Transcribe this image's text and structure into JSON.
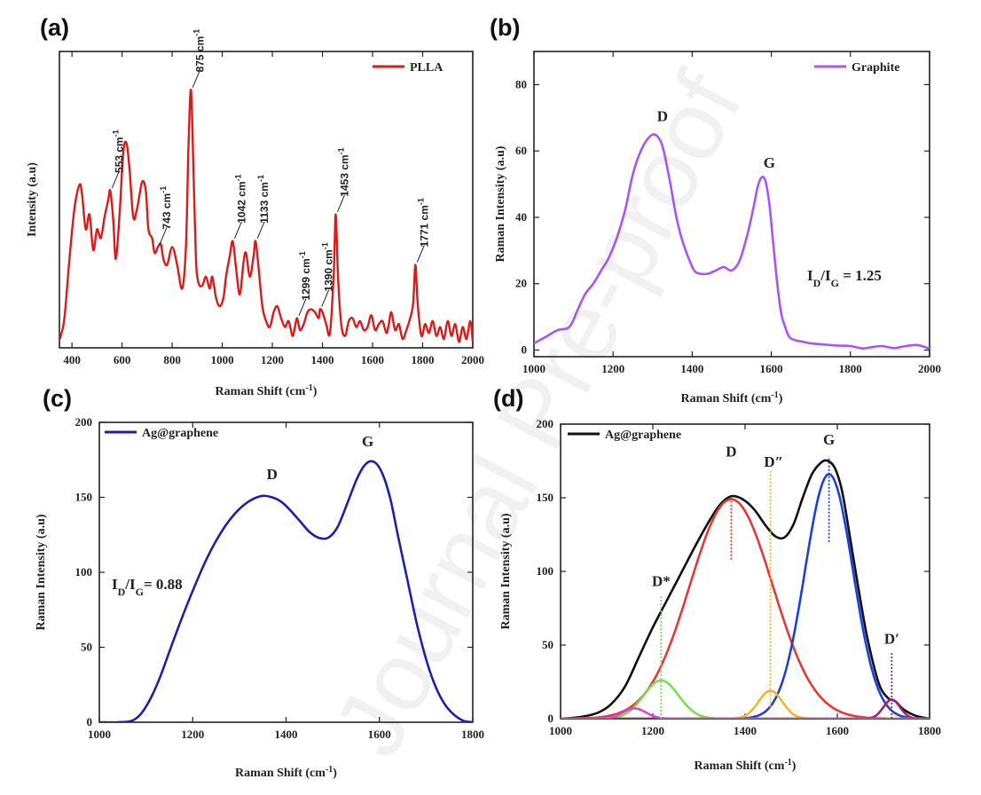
{
  "watermark": "Journal Pre-proof",
  "chart_data": [
    {
      "panel": "(a)",
      "type": "line",
      "xlabel": "Raman Shift (cm",
      "xlabel_sup": "-1",
      "xlabel_end": ")",
      "ylabel": "Intensity (a.u)",
      "xlim": [
        350,
        2000
      ],
      "xticks": [
        400,
        600,
        800,
        1000,
        1200,
        1400,
        1600,
        1800,
        2000
      ],
      "yticks_shown": false,
      "legend": "PLLA",
      "legend_position": "top-right",
      "series": [
        {
          "name": "PLLA",
          "color": "#dd1a1a",
          "x": [
            352,
            370,
            390,
            410,
            430,
            440,
            455,
            470,
            485,
            500,
            515,
            530,
            545,
            553,
            565,
            575,
            590,
            605,
            618,
            630,
            645,
            660,
            680,
            695,
            705,
            720,
            730,
            743,
            755,
            765,
            780,
            800,
            820,
            840,
            855,
            865,
            875,
            885,
            895,
            905,
            920,
            935,
            950,
            960,
            975,
            990,
            1005,
            1015,
            1030,
            1042,
            1055,
            1070,
            1085,
            1095,
            1110,
            1125,
            1133,
            1145,
            1160,
            1175,
            1190,
            1205,
            1220,
            1235,
            1250,
            1265,
            1280,
            1290,
            1299,
            1310,
            1325,
            1340,
            1355,
            1370,
            1385,
            1390,
            1400,
            1415,
            1430,
            1445,
            1453,
            1462,
            1475,
            1490,
            1505,
            1520,
            1535,
            1550,
            1565,
            1580,
            1595,
            1610,
            1625,
            1640,
            1655,
            1665,
            1675,
            1690,
            1705,
            1720,
            1735,
            1750,
            1762,
            1771,
            1780,
            1795,
            1810,
            1825,
            1840,
            1855,
            1870,
            1885,
            1900,
            1915,
            1930,
            1945,
            1960,
            1975,
            1990,
            2000
          ],
          "y": [
            3,
            10,
            30,
            47,
            55,
            52,
            40,
            45,
            33,
            40,
            37,
            44,
            50,
            53,
            43,
            30,
            45,
            66,
            69,
            60,
            44,
            47,
            56,
            53,
            40,
            37,
            32,
            34,
            35,
            30,
            28,
            34,
            28,
            20,
            34,
            67,
            87,
            60,
            30,
            22,
            21,
            24,
            20,
            24,
            17,
            14,
            17,
            24,
            31,
            36,
            27,
            18,
            29,
            32,
            24,
            31,
            36,
            27,
            14,
            9,
            7,
            12,
            14,
            10,
            7,
            9,
            4,
            7,
            10,
            6,
            8,
            12,
            13,
            12,
            10,
            13,
            12,
            8,
            5,
            25,
            45,
            24,
            8,
            4,
            9,
            10,
            7,
            9,
            6,
            7,
            11,
            6,
            8,
            9,
            5,
            8,
            12,
            6,
            8,
            3,
            6,
            10,
            15,
            28,
            15,
            4,
            8,
            5,
            9,
            4,
            7,
            3,
            9,
            4,
            8,
            2,
            7,
            3,
            9,
            2
          ],
          "color_note": "red"
        }
      ],
      "annotations": [
        {
          "label": "553 cm",
          "sup": "-1",
          "x": 553,
          "y": 53
        },
        {
          "label": "743 cm",
          "sup": "-1",
          "x": 743,
          "y": 34
        },
        {
          "label": "875 cm",
          "sup": "-1",
          "x": 875,
          "y": 87
        },
        {
          "label": "1042 cm",
          "sup": "-1",
          "x": 1042,
          "y": 36
        },
        {
          "label": "1133 cm",
          "sup": "-1",
          "x": 1133,
          "y": 36
        },
        {
          "label": "1299 cm",
          "sup": "-1",
          "x": 1299,
          "y": 10
        },
        {
          "label": "1390 cm",
          "sup": "-1",
          "x": 1390,
          "y": 13
        },
        {
          "label": "1453 cm",
          "sup": "-1",
          "x": 1453,
          "y": 45
        },
        {
          "label": "1771 cm",
          "sup": "-1",
          "x": 1771,
          "y": 28
        }
      ],
      "ylim": [
        0,
        100
      ]
    },
    {
      "panel": "(b)",
      "type": "line",
      "xlabel": "Raman Shift (cm",
      "xlabel_sup": "-1",
      "xlabel_end": ")",
      "ylabel": "Raman Intensity (a.u)",
      "xlim": [
        1000,
        2000
      ],
      "ylim": [
        -2,
        90
      ],
      "xticks": [
        1000,
        1200,
        1400,
        1600,
        1800,
        2000
      ],
      "yticks": [
        0,
        20,
        40,
        60,
        80
      ],
      "legend": "Graphite",
      "legend_position": "top-right",
      "series": [
        {
          "name": "Graphite",
          "color": "#a855f7",
          "x": [
            1000,
            1030,
            1060,
            1090,
            1110,
            1130,
            1150,
            1170,
            1190,
            1210,
            1230,
            1250,
            1270,
            1290,
            1305,
            1320,
            1330,
            1345,
            1360,
            1375,
            1390,
            1405,
            1420,
            1440,
            1460,
            1480,
            1500,
            1520,
            1540,
            1555,
            1565,
            1575,
            1585,
            1595,
            1605,
            1615,
            1625,
            1635,
            1645,
            1660,
            1680,
            1700,
            1720,
            1740,
            1760,
            1780,
            1800,
            1830,
            1850,
            1880,
            1910,
            1940,
            1970,
            2000
          ],
          "y": [
            2,
            4,
            6,
            7,
            12,
            17,
            20,
            24,
            28,
            34,
            42,
            53,
            60,
            64,
            65,
            63,
            59,
            50,
            40,
            33,
            28,
            24,
            23,
            23,
            24,
            25,
            24,
            27,
            35,
            43,
            49,
            52,
            51,
            44,
            32,
            20,
            11,
            7,
            4,
            3,
            2.5,
            2,
            1.8,
            1.6,
            1.4,
            1.3,
            1.2,
            0.5,
            0.8,
            1.2,
            0.6,
            1.2,
            1.5,
            0.4
          ],
          "color_note": "purple"
        }
      ],
      "peak_labels": [
        {
          "text": "D",
          "x": 1325,
          "y": 69
        },
        {
          "text": "G",
          "x": 1595,
          "y": 55
        }
      ],
      "ratio": {
        "text_I": "I",
        "sub_D": "D",
        "slash": "/I",
        "sub_G": "G",
        "value": " = 1.25"
      }
    },
    {
      "panel": "(c)",
      "type": "line",
      "xlabel": "Raman Shift (cm",
      "xlabel_sup": "-1",
      "xlabel_end": ")",
      "ylabel": "Raman Intensity (a.u)",
      "xlim": [
        1000,
        1800
      ],
      "ylim": [
        0,
        200
      ],
      "xticks": [
        1000,
        1200,
        1400,
        1600,
        1800
      ],
      "yticks": [
        0,
        50,
        100,
        150,
        200
      ],
      "legend": "Ag@graphene",
      "legend_position": "top-left",
      "series": [
        {
          "name": "Ag@graphene",
          "color": "#1c22a8",
          "x": [
            1000,
            1040,
            1070,
            1090,
            1110,
            1130,
            1150,
            1170,
            1190,
            1210,
            1230,
            1250,
            1270,
            1290,
            1310,
            1330,
            1350,
            1370,
            1390,
            1410,
            1430,
            1450,
            1470,
            1490,
            1510,
            1530,
            1550,
            1565,
            1580,
            1595,
            1610,
            1625,
            1640,
            1660,
            1680,
            1700,
            1720,
            1740,
            1760,
            1780,
            1800
          ],
          "y": [
            0,
            0,
            1,
            6,
            16,
            30,
            47,
            64,
            80,
            95,
            109,
            121,
            131,
            139,
            145,
            149,
            151,
            150,
            147,
            141,
            134,
            127,
            123,
            123,
            130,
            145,
            161,
            170,
            174,
            172,
            163,
            147,
            124,
            95,
            66,
            42,
            24,
            12,
            5,
            1,
            0
          ],
          "color_note": "navy"
        }
      ],
      "peak_labels": [
        {
          "text": "D",
          "x": 1370,
          "y": 162
        },
        {
          "text": "G",
          "x": 1575,
          "y": 184
        }
      ],
      "ratio": {
        "text_I": "I",
        "sub_D": "D",
        "slash": "/I",
        "sub_G": "G",
        "value": "= 0.88"
      }
    },
    {
      "panel": "(d)",
      "type": "line",
      "xlabel": "Raman Shift (cm",
      "xlabel_sup": "-1",
      "xlabel_end": ")",
      "ylabel": "Raman Intensity (a.u)",
      "xlim": [
        1000,
        1800
      ],
      "ylim": [
        0,
        200
      ],
      "xticks": [
        1000,
        1200,
        1400,
        1600,
        1800
      ],
      "yticks": [
        0,
        50,
        100,
        150,
        200
      ],
      "legend": "Ag@graphene",
      "legend_position": "top-left",
      "series": [
        {
          "name": "Ag@graphene",
          "color": "#111111",
          "x": [
            1000,
            1040,
            1080,
            1110,
            1140,
            1170,
            1200,
            1230,
            1260,
            1290,
            1320,
            1345,
            1370,
            1395,
            1420,
            1445,
            1465,
            1485,
            1505,
            1525,
            1545,
            1565,
            1580,
            1595,
            1610,
            1625,
            1645,
            1665,
            1690,
            1710,
            1725,
            1745,
            1770,
            1800
          ],
          "y": [
            0,
            1,
            4,
            10,
            22,
            42,
            62,
            80,
            98,
            116,
            133,
            145,
            151,
            149,
            142,
            131,
            124,
            123,
            132,
            150,
            166,
            174,
            175,
            170,
            155,
            128,
            90,
            55,
            24,
            14,
            12,
            6,
            2,
            0
          ]
        },
        {
          "name": "D",
          "color": "#e53935",
          "gauss": [
            149,
            1370,
            90
          ]
        },
        {
          "name": "G",
          "color": "#1e3fd8",
          "gauss": [
            166,
            1582,
            52
          ]
        },
        {
          "name": "D*",
          "color": "#7ed957",
          "gauss": [
            26,
            1218,
            38
          ]
        },
        {
          "name": "D''",
          "color": "#f2b530",
          "gauss": [
            19,
            1455,
            26
          ]
        },
        {
          "name": "D'",
          "color": "#a3246e",
          "gauss": [
            13,
            1718,
            18
          ]
        },
        {
          "name": "small",
          "color": "#d24bd2",
          "gauss": [
            7,
            1160,
            25
          ]
        }
      ],
      "peak_labels": [
        {
          "text": "D",
          "x": 1370,
          "y": 178,
          "color": "#e53935"
        },
        {
          "text": "G",
          "x": 1582,
          "y": 186,
          "color": "#1e3fd8"
        },
        {
          "text": "D″",
          "x": 1462,
          "y": 171,
          "color": "#f2b530"
        },
        {
          "text": "D*",
          "x": 1218,
          "y": 90,
          "color": "#7ed957"
        },
        {
          "text": "D′",
          "x": 1718,
          "y": 51,
          "color": "#a3246e"
        }
      ],
      "markers": [
        {
          "x": 1370,
          "y0": 108,
          "y1": 150,
          "color": "#e53935"
        },
        {
          "x": 1582,
          "y0": 120,
          "y1": 178,
          "color": "#1e3fd8"
        },
        {
          "x": 1455,
          "y0": 8,
          "y1": 168,
          "color": "#f2b530"
        },
        {
          "x": 1218,
          "y0": 0,
          "y1": 83,
          "color": "#7ed957"
        },
        {
          "x": 1718,
          "y0": 0,
          "y1": 45,
          "color": "#a3246e"
        }
      ]
    }
  ]
}
